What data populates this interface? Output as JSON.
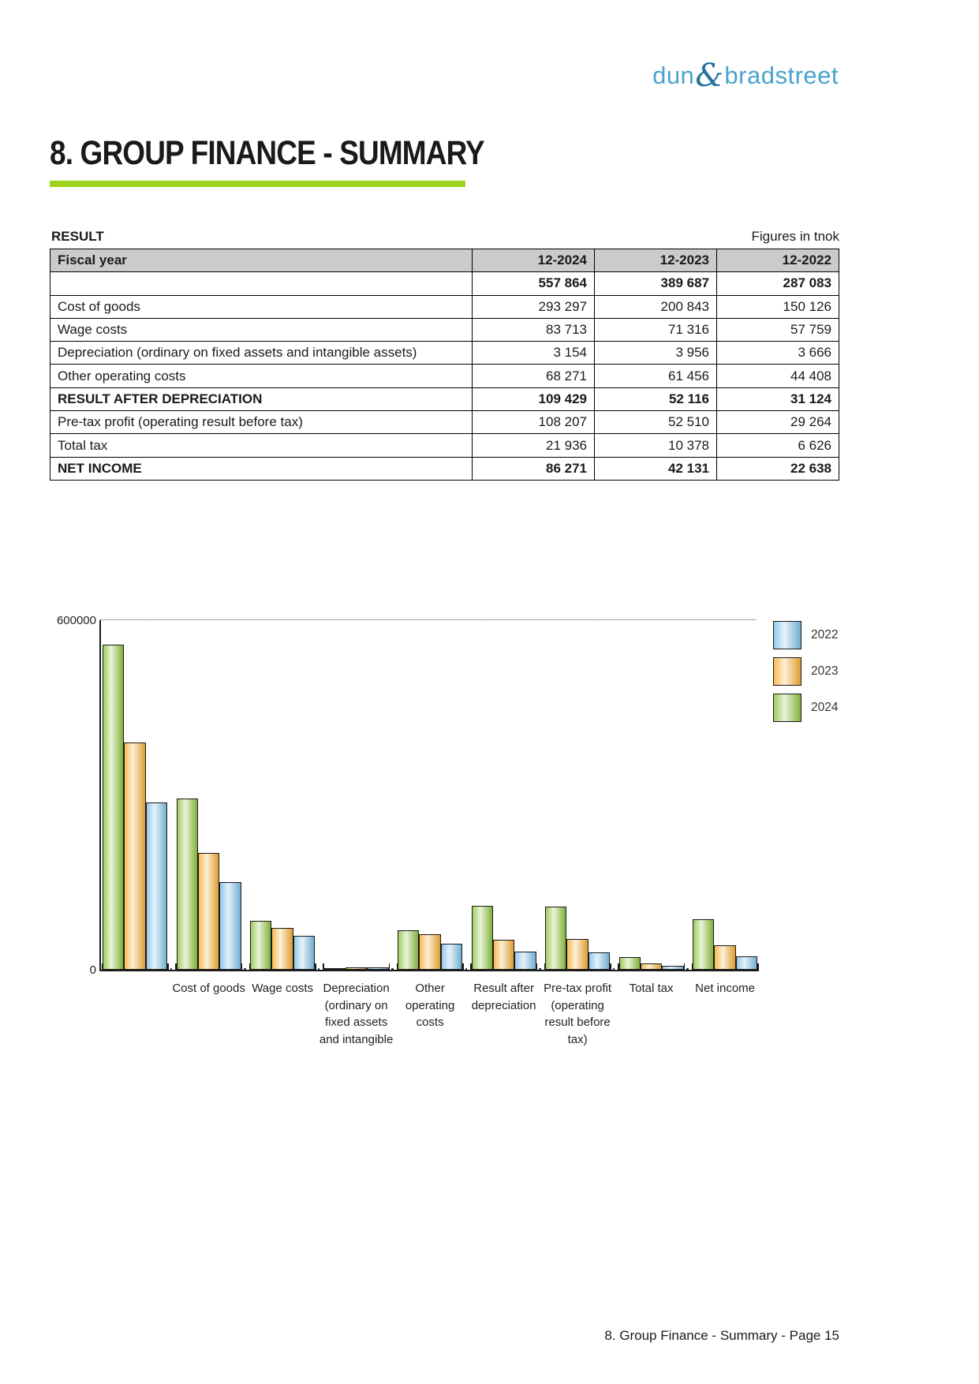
{
  "logo": {
    "part1": "dun",
    "amp": "&",
    "part2": "bradstreet",
    "word_color": "#4BA3CD",
    "amp_color": "#25719C"
  },
  "heading": {
    "title": "8. GROUP FINANCE - SUMMARY",
    "accent_rule_color": "#9FD31C"
  },
  "result_section": {
    "label": "RESULT",
    "units_note": "Figures in tnok"
  },
  "table": {
    "header": [
      "Fiscal year",
      "12-2024",
      "12-2023",
      "12-2022"
    ],
    "rows": [
      {
        "label": "",
        "values": [
          "557 864",
          "389 687",
          "287 083"
        ],
        "bold": true
      },
      {
        "label": "Cost of goods",
        "values": [
          "293 297",
          "200 843",
          "150 126"
        ],
        "bold": false
      },
      {
        "label": "Wage costs",
        "values": [
          "83 713",
          "71 316",
          "57 759"
        ],
        "bold": false
      },
      {
        "label": "Depreciation (ordinary on fixed assets and intangible assets)",
        "values": [
          "3 154",
          "3 956",
          "3 666"
        ],
        "bold": false
      },
      {
        "label": "Other operating costs",
        "values": [
          "68 271",
          "61 456",
          "44 408"
        ],
        "bold": false
      },
      {
        "label": "RESULT AFTER DEPRECIATION",
        "values": [
          "109 429",
          "52 116",
          "31 124"
        ],
        "bold": true
      },
      {
        "label": "Pre-tax profit (operating result before tax)",
        "values": [
          "108 207",
          "52 510",
          "29 264"
        ],
        "bold": false
      },
      {
        "label": "Total tax",
        "values": [
          "21 936",
          "10 378",
          "6 626"
        ],
        "bold": false
      },
      {
        "label": "NET INCOME",
        "values": [
          "86 271",
          "42 131",
          "22 638"
        ],
        "bold": true
      }
    ]
  },
  "chart_data": {
    "type": "bar",
    "title": "",
    "xlabel": "",
    "ylabel": "",
    "ylim": [
      0,
      600000
    ],
    "ytick_labels": {
      "top": "600000",
      "bottom": "0"
    },
    "grid": "dotted line at y-max only",
    "legend_position": "top-right",
    "categories": [
      "",
      "Cost of goods",
      "Wage costs",
      "Depreciation (ordinary on fixed assets and intangible",
      "Other operating costs",
      "Result after depreciation",
      "Pre-tax profit (operating result before tax)",
      "Total tax",
      "Net income"
    ],
    "category_display_lines": [
      [],
      [
        "Cost of goods"
      ],
      [
        "Wage costs"
      ],
      [
        "Depreciation",
        "(ordinary on",
        "fixed assets",
        "and intangible"
      ],
      [
        "Other",
        "operating",
        "costs"
      ],
      [
        "Result after",
        "depreciation"
      ],
      [
        "Pre-tax profit",
        "(operating",
        "result before",
        "tax)"
      ],
      [
        "Total tax"
      ],
      [
        "Net income"
      ]
    ],
    "series": [
      {
        "name": "2024",
        "color": "#8FC440",
        "values": [
          557864,
          293297,
          83713,
          3154,
          68271,
          109429,
          108207,
          21936,
          86271
        ]
      },
      {
        "name": "2023",
        "color": "#F7AE35",
        "values": [
          389687,
          200843,
          71316,
          3956,
          61456,
          52116,
          52510,
          10378,
          42131
        ]
      },
      {
        "name": "2022",
        "color": "#7FC0E8",
        "values": [
          287083,
          150126,
          57759,
          3666,
          44408,
          31124,
          29264,
          6626,
          22638
        ]
      }
    ],
    "legend": [
      {
        "label": "2022"
      },
      {
        "label": "2023"
      },
      {
        "label": "2024"
      }
    ]
  },
  "footer": {
    "text": "8. Group Finance - Summary - Page 15"
  }
}
